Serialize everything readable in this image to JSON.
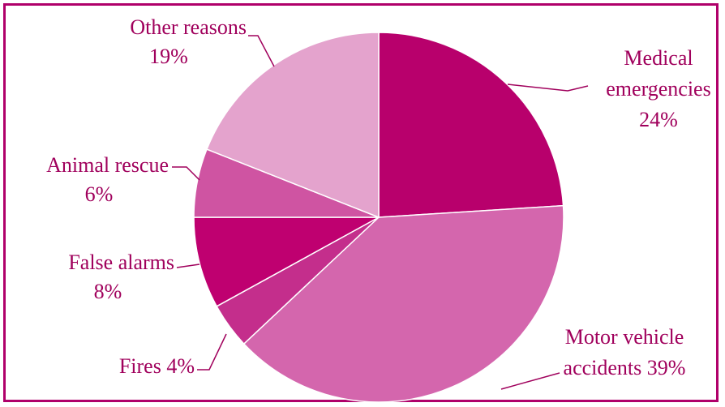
{
  "chart_data": {
    "type": "pie",
    "title": "",
    "colors": {
      "frame": "#b0006a",
      "text": "#a0005c",
      "leader": "#a0005c",
      "slice_edge": "#ffffff"
    },
    "slices": [
      {
        "label_lines": [
          "Medical",
          "emergencies"
        ],
        "value_text": "24%",
        "value": 24,
        "color": "#b8006c"
      },
      {
        "label_lines": [
          "Motor vehicle",
          "accidents  39%"
        ],
        "value_text": "",
        "value": 39,
        "color": "#d466ad"
      },
      {
        "label_lines": [
          "Fires  4%"
        ],
        "value_text": "",
        "value": 4,
        "color": "#c42e8c"
      },
      {
        "label_lines": [
          "False alarms"
        ],
        "value_text": "8%",
        "value": 8,
        "color": "#bf0070"
      },
      {
        "label_lines": [
          "Animal rescue"
        ],
        "value_text": "6%",
        "value": 6,
        "color": "#cf54a2"
      },
      {
        "label_lines": [
          "Other reasons"
        ],
        "value_text": "19%",
        "value": 19,
        "color": "#e4a3cd"
      }
    ]
  }
}
